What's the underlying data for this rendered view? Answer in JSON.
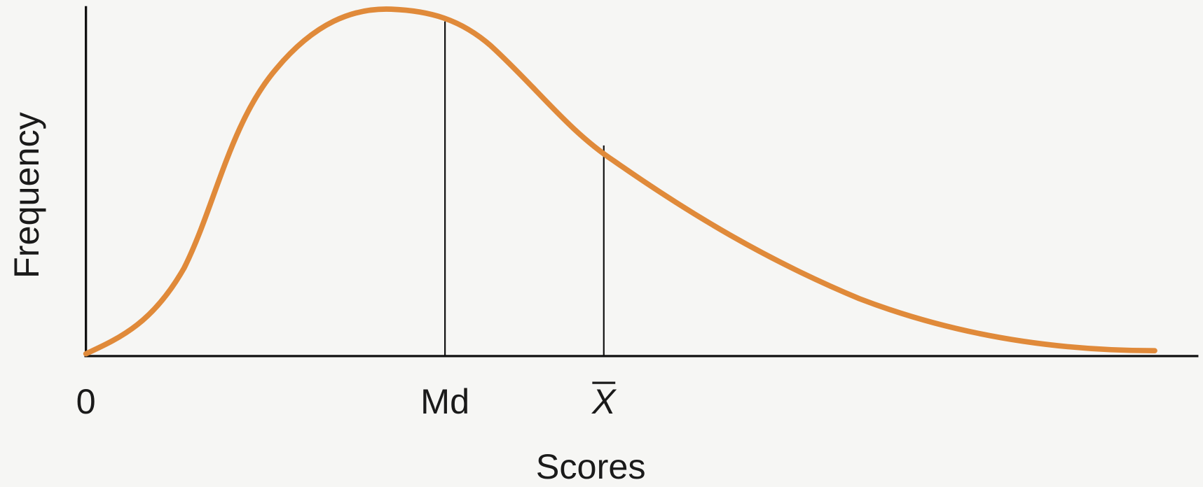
{
  "axes": {
    "y_label": "Frequency",
    "x_label": "Scores"
  },
  "markers": [
    {
      "label": "0"
    },
    {
      "label": "Md"
    },
    {
      "label": "X"
    }
  ]
}
